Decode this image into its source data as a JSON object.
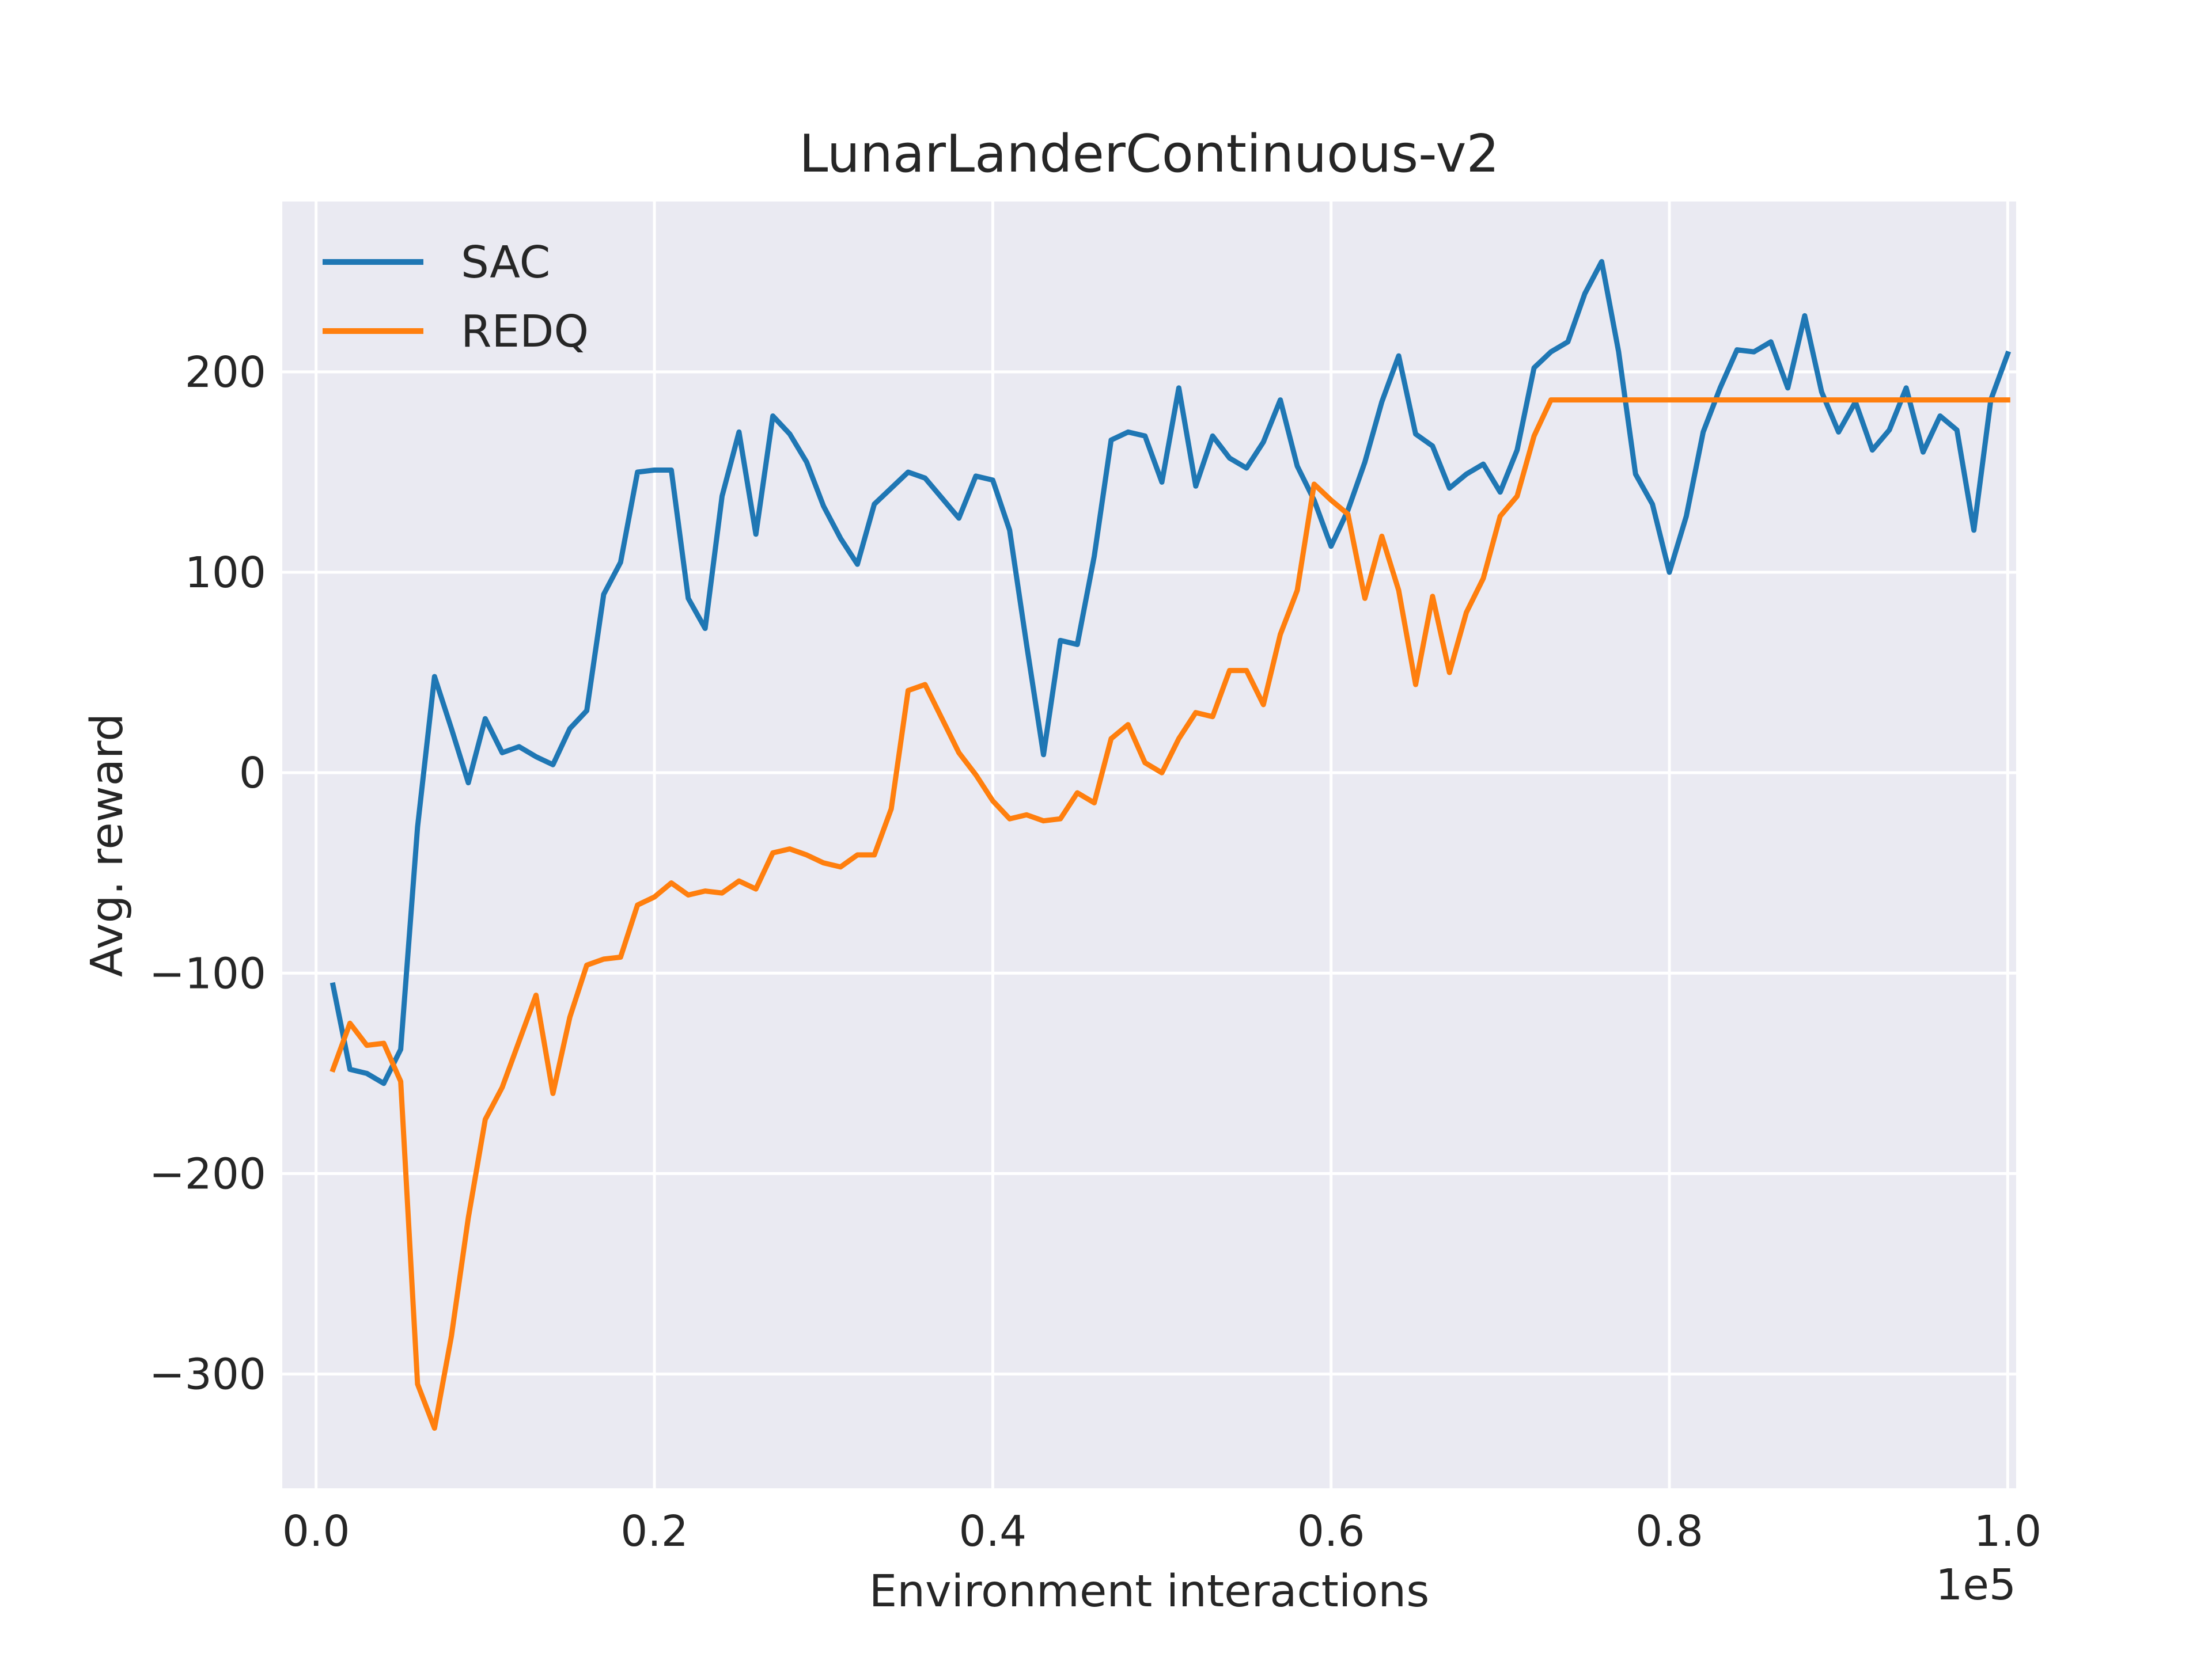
{
  "colors": {
    "plot_background": "#eaeaf2",
    "grid": "#ffffff",
    "SAC": "#1f77b4",
    "REDQ": "#ff7f0e",
    "text": "#262626"
  },
  "chart_data": {
    "type": "line",
    "title": "LunarLanderContinuous-v2",
    "xlabel": "Environment interactions",
    "ylabel": "Avg. reward",
    "x_offset_label": "1e5",
    "xlim": [
      -0.02,
      1.005
    ],
    "ylim": [
      -357,
      285
    ],
    "xticks": [
      0.0,
      0.2,
      0.4,
      0.6,
      0.8,
      1.0
    ],
    "xtick_labels": [
      "0.0",
      "0.2",
      "0.4",
      "0.6",
      "0.8",
      "1.0"
    ],
    "yticks": [
      -300,
      -200,
      -100,
      0,
      100,
      200
    ],
    "ytick_labels": [
      "−300",
      "−200",
      "−100",
      "0",
      "100",
      "200"
    ],
    "grid": true,
    "legend_position": "top-left",
    "x": [
      0.01,
      0.02,
      0.03,
      0.04,
      0.05,
      0.06,
      0.07,
      0.08,
      0.09,
      0.1,
      0.11,
      0.12,
      0.13,
      0.14,
      0.15,
      0.16,
      0.17,
      0.18,
      0.19,
      0.2,
      0.21,
      0.22,
      0.23,
      0.24,
      0.25,
      0.26,
      0.27,
      0.28,
      0.29,
      0.3,
      0.31,
      0.32,
      0.33,
      0.34,
      0.35,
      0.36,
      0.37,
      0.38,
      0.39,
      0.4,
      0.41,
      0.42,
      0.43,
      0.44,
      0.45,
      0.46,
      0.47,
      0.48,
      0.49,
      0.5,
      0.51,
      0.52,
      0.53,
      0.54,
      0.55,
      0.56,
      0.57,
      0.58,
      0.59,
      0.6,
      0.61,
      0.62,
      0.63,
      0.64,
      0.65,
      0.66,
      0.67,
      0.68,
      0.69,
      0.7,
      0.71,
      0.72,
      0.73,
      0.74,
      0.75,
      0.76,
      0.77,
      0.78,
      0.79,
      0.8,
      0.81,
      0.82,
      0.83,
      0.84,
      0.85,
      0.86,
      0.87,
      0.88,
      0.89,
      0.9,
      0.91,
      0.92,
      0.93,
      0.94,
      0.95,
      0.96,
      0.97,
      0.98,
      0.99,
      1.0
    ],
    "series": [
      {
        "name": "SAC",
        "values": [
          -106,
          -148,
          -150,
          -155,
          -138,
          -27,
          48,
          22,
          -5,
          27,
          10,
          13,
          8,
          4,
          22,
          31,
          89,
          105,
          150,
          151,
          151,
          87,
          72,
          138,
          170,
          119,
          178,
          169,
          155,
          133,
          117,
          104,
          134,
          142,
          150,
          147,
          137,
          127,
          148,
          146,
          121,
          64,
          9,
          66,
          64,
          108,
          166,
          170,
          168,
          145,
          192,
          143,
          168,
          157,
          152,
          165,
          186,
          153,
          136,
          113,
          131,
          155,
          185,
          208,
          169,
          163,
          142,
          149,
          154,
          140,
          161,
          202,
          210,
          215,
          239,
          255,
          210,
          149,
          134,
          100,
          128,
          170,
          192,
          211,
          210,
          215,
          192,
          228,
          190,
          170,
          185,
          161,
          171,
          192,
          160,
          178,
          171,
          121,
          186,
          209
        ]
      },
      {
        "name": "REDQ",
        "values": [
          -148,
          -125,
          -136,
          -135,
          -154,
          -305,
          -327,
          -281,
          -222,
          -173,
          -157,
          -134,
          -111,
          -160,
          -122,
          -96,
          -93,
          -92,
          -66,
          -62,
          -55,
          -61,
          -59,
          -60,
          -54,
          -58,
          -40,
          -38,
          -41,
          -45,
          -47,
          -41,
          -41,
          -18,
          41,
          44,
          27,
          10,
          -1,
          -14,
          -23,
          -21,
          -24,
          -23,
          -10,
          -15,
          17,
          24,
          5,
          0,
          17,
          30,
          28,
          51,
          51,
          34,
          69,
          91,
          144,
          136,
          129,
          87,
          118,
          91,
          44,
          88,
          50,
          80,
          97,
          128,
          138,
          168,
          186,
          186,
          186,
          186,
          186,
          186,
          186,
          186,
          186,
          186,
          186,
          186,
          186,
          186,
          186,
          186,
          186,
          186,
          186,
          186,
          186,
          186,
          186,
          186,
          186,
          186,
          186,
          186
        ]
      }
    ]
  }
}
